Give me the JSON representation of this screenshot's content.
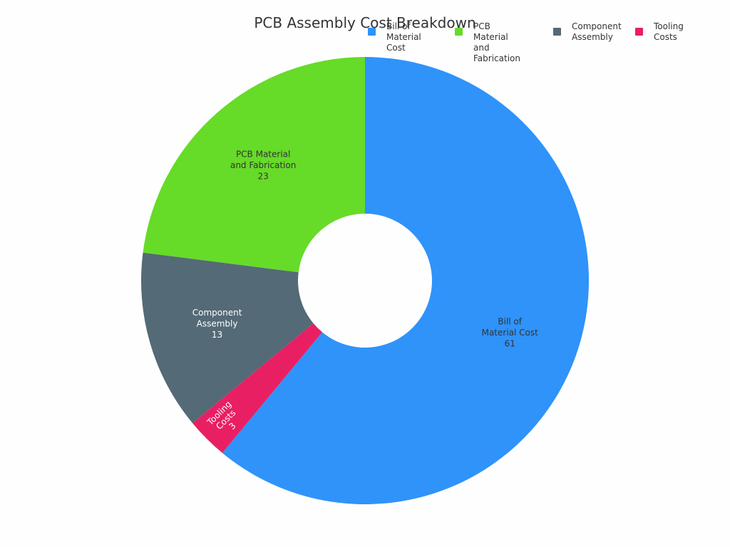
{
  "title": "PCB Assembly Cost Breakdown",
  "colors": {
    "bill_of_material": "#2f93fa",
    "pcb_material": "#66db28",
    "component_assembly": "#546a76",
    "tooling": "#e91f63"
  },
  "legend": [
    {
      "label": "Bill of\nMaterial Cost",
      "color": "#2f93fa"
    },
    {
      "label": "PCB Material\nand Fabrication",
      "color": "#66db28"
    },
    {
      "label": "Component\nAssembly",
      "color": "#546a76"
    },
    {
      "label": "Tooling\nCosts",
      "color": "#e91f63"
    }
  ],
  "chart_data": {
    "type": "pie",
    "donut": true,
    "title": "PCB Assembly Cost Breakdown",
    "legend_position": "top-right",
    "slices": [
      {
        "label": "Bill of\nMaterial Cost",
        "value": 61,
        "color": "#2f93fa",
        "text_color": "#333333"
      },
      {
        "label": "Tooling\nCosts",
        "value": 3,
        "color": "#e91f63",
        "text_color": "#ffffff"
      },
      {
        "label": "Component\nAssembly",
        "value": 13,
        "color": "#546a76",
        "text_color": "#ffffff"
      },
      {
        "label": "PCB Material\nand Fabrication",
        "value": 23,
        "color": "#66db28",
        "text_color": "#333333"
      }
    ]
  }
}
